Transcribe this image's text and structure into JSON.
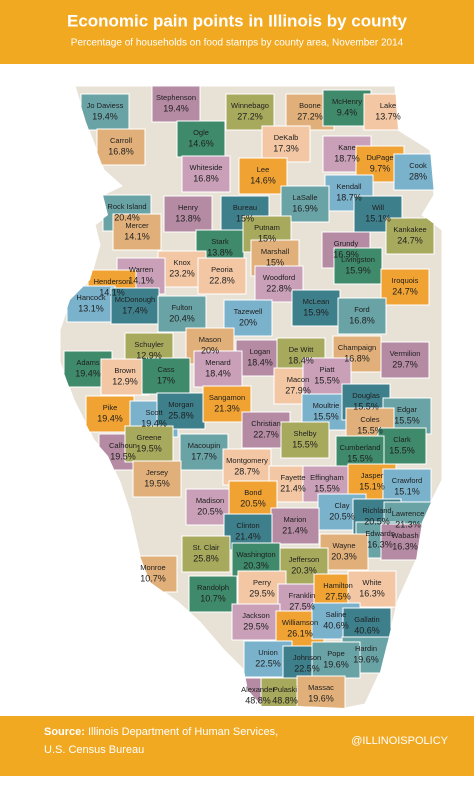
{
  "header": {
    "title": "Economic pain points in Illinois by county",
    "subtitle": "Percentage of households on food stamps by county area, November 2014"
  },
  "counties": [
    {
      "name": "Jo Daviess",
      "value": "19.4%"
    },
    {
      "name": "Stephenson",
      "value": "19.4%"
    },
    {
      "name": "Winnebago",
      "value": "27.2%"
    },
    {
      "name": "Boone",
      "value": "27.2%"
    },
    {
      "name": "McHenry",
      "value": "9.4%"
    },
    {
      "name": "Lake",
      "value": "13.7%"
    },
    {
      "name": "Carroll",
      "value": "16.8%"
    },
    {
      "name": "Ogle",
      "value": "14.6%"
    },
    {
      "name": "DeKalb",
      "value": "17.3%"
    },
    {
      "name": "Kane",
      "value": "18.7%"
    },
    {
      "name": "DuPage",
      "value": "9.7%"
    },
    {
      "name": "Cook",
      "value": "28%"
    },
    {
      "name": "Whiteside",
      "value": "16.8%"
    },
    {
      "name": "Lee",
      "value": "14.6%"
    },
    {
      "name": "Kendall",
      "value": "18.7%"
    },
    {
      "name": "Will",
      "value": "15.1%"
    },
    {
      "name": "Rock Island",
      "value": "20.4%"
    },
    {
      "name": "Henry",
      "value": "13.8%"
    },
    {
      "name": "Bureau",
      "value": "15%"
    },
    {
      "name": "LaSalle",
      "value": "16.9%"
    },
    {
      "name": "Grundy",
      "value": "16.9%"
    },
    {
      "name": "Kankakee",
      "value": "24.7%"
    },
    {
      "name": "Mercer",
      "value": "14.1%"
    },
    {
      "name": "Stark",
      "value": "13.8%"
    },
    {
      "name": "Putnam",
      "value": "15%"
    },
    {
      "name": "Marshall",
      "value": "15%"
    },
    {
      "name": "Livingston",
      "value": "15.9%"
    },
    {
      "name": "Knox",
      "value": "23.2%"
    },
    {
      "name": "Warren",
      "value": "14.1%"
    },
    {
      "name": "Henderson",
      "value": "14.1%"
    },
    {
      "name": "Peoria",
      "value": "22.8%"
    },
    {
      "name": "Woodford",
      "value": "22.8%"
    },
    {
      "name": "Iroquois",
      "value": "24.7%"
    },
    {
      "name": "Hancock",
      "value": "13.1%"
    },
    {
      "name": "McDonough",
      "value": "17.4%"
    },
    {
      "name": "Fulton",
      "value": "20.4%"
    },
    {
      "name": "Tazewell",
      "value": "20%"
    },
    {
      "name": "McLean",
      "value": "15.9%"
    },
    {
      "name": "Ford",
      "value": "16.8%"
    },
    {
      "name": "Vermilion",
      "value": "29.7%"
    },
    {
      "name": "Schuyler",
      "value": "12.9%"
    },
    {
      "name": "Mason",
      "value": "20%"
    },
    {
      "name": "Logan",
      "value": "18.4%"
    },
    {
      "name": "De Witt",
      "value": "18.4%"
    },
    {
      "name": "Champaign",
      "value": "16.8%"
    },
    {
      "name": "Adams",
      "value": "19.4%"
    },
    {
      "name": "Brown",
      "value": "12.9%"
    },
    {
      "name": "Menard",
      "value": "18.4%"
    },
    {
      "name": "Cass",
      "value": "17%"
    },
    {
      "name": "Macon",
      "value": "27.9%"
    },
    {
      "name": "Piatt",
      "value": "15.5%"
    },
    {
      "name": "Pike",
      "value": "19.4%"
    },
    {
      "name": "Scott",
      "value": "19.4%"
    },
    {
      "name": "Morgan",
      "value": "25.8%"
    },
    {
      "name": "Sangamon",
      "value": "21.3%"
    },
    {
      "name": "Moultrie",
      "value": "15.5%"
    },
    {
      "name": "Douglas",
      "value": "15.5%"
    },
    {
      "name": "Edgar",
      "value": "15.5%"
    },
    {
      "name": "Calhoun",
      "value": "19.5%"
    },
    {
      "name": "Greene",
      "value": "19.5%"
    },
    {
      "name": "Macoupin",
      "value": "17.7%"
    },
    {
      "name": "Christian",
      "value": "22.7%"
    },
    {
      "name": "Shelby",
      "value": "15.5%"
    },
    {
      "name": "Coles",
      "value": "15.5%"
    },
    {
      "name": "Clark",
      "value": "15.5%"
    },
    {
      "name": "Montgomery",
      "value": "28.7%"
    },
    {
      "name": "Jersey",
      "value": "19.5%"
    },
    {
      "name": "Cumberland",
      "value": "15.5%"
    },
    {
      "name": "Fayette",
      "value": "21.4%"
    },
    {
      "name": "Effingham",
      "value": "15.5%"
    },
    {
      "name": "Jasper",
      "value": "15.1%"
    },
    {
      "name": "Crawford",
      "value": "15.1%"
    },
    {
      "name": "Madison",
      "value": "20.5%"
    },
    {
      "name": "Bond",
      "value": "20.5%"
    },
    {
      "name": "Clay",
      "value": "20.5%"
    },
    {
      "name": "Richland",
      "value": "20.5%"
    },
    {
      "name": "Lawrence",
      "value": "21.3%"
    },
    {
      "name": "Marion",
      "value": "21.4%"
    },
    {
      "name": "Clinton",
      "value": "21.4%"
    },
    {
      "name": "Edwards",
      "value": "16.3%"
    },
    {
      "name": "Wabash",
      "value": "16.3%"
    },
    {
      "name": "St. Clair",
      "value": "25.8%"
    },
    {
      "name": "Wayne",
      "value": "20.3%"
    },
    {
      "name": "Washington",
      "value": "20.3%"
    },
    {
      "name": "Jefferson",
      "value": "20.3%"
    },
    {
      "name": "Monroe",
      "value": "10.7%"
    },
    {
      "name": "Randolph",
      "value": "10.7%"
    },
    {
      "name": "Perry",
      "value": "29.5%"
    },
    {
      "name": "Franklin",
      "value": "27.5%"
    },
    {
      "name": "Hamilton",
      "value": "27.5%"
    },
    {
      "name": "White",
      "value": "16.3%"
    },
    {
      "name": "Jackson",
      "value": "29.5%"
    },
    {
      "name": "Williamson",
      "value": "26.1%"
    },
    {
      "name": "Saline",
      "value": "40.6%"
    },
    {
      "name": "Gallatin",
      "value": "40.6%"
    },
    {
      "name": "Hardin",
      "value": "19.6%"
    },
    {
      "name": "Union",
      "value": "22.5%"
    },
    {
      "name": "Johnson",
      "value": "22.5%"
    },
    {
      "name": "Pope",
      "value": "19.6%"
    },
    {
      "name": "Alexander",
      "value": "48.8%"
    },
    {
      "name": "Pulaski",
      "value": "48.8%"
    },
    {
      "name": "Massac",
      "value": "19.6%"
    }
  ],
  "footer": {
    "source_label": "Source:",
    "source_lines": [
      "Illinois Department of Human Services,",
      "U.S. Census Bureau"
    ],
    "handle": "@ILLINOISPOLICY"
  }
}
